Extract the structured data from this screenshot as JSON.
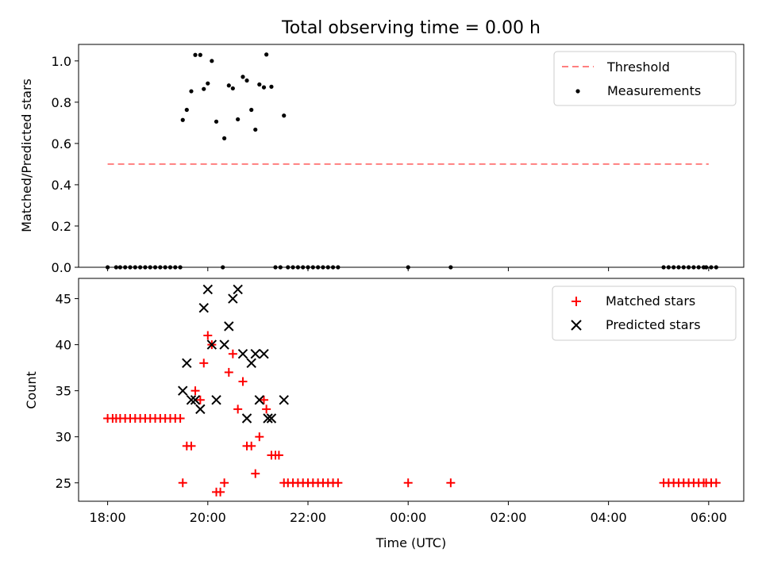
{
  "chart_data": [
    {
      "type": "scatter",
      "title": "Total observing time = 0.00 h",
      "xlabel": "",
      "ylabel": "Matched/Predicted stars",
      "ylim": [
        0.0,
        1.08
      ],
      "yticks": [
        0.0,
        0.2,
        0.4,
        0.6,
        0.8,
        1.0
      ],
      "yticklabels": [
        "0.0",
        "0.2",
        "0.4",
        "0.6",
        "0.8",
        "1.0"
      ],
      "x_unit": "hours since 18:00 UTC",
      "xlim": [
        -0.58,
        12.7
      ],
      "legend_position": "upper right",
      "series": [
        {
          "name": "Threshold",
          "kind": "dashed-line",
          "color": "#ff7f7f",
          "x": [
            0.0,
            12.0
          ],
          "y": [
            0.5,
            0.5
          ]
        },
        {
          "name": "Measurements",
          "kind": "dots",
          "color": "#000000",
          "points": [
            [
              0.0,
              0.0
            ],
            [
              0.17,
              0.0
            ],
            [
              0.25,
              0.0
            ],
            [
              0.35,
              0.0
            ],
            [
              0.45,
              0.0
            ],
            [
              0.55,
              0.0
            ],
            [
              0.65,
              0.0
            ],
            [
              0.75,
              0.0
            ],
            [
              0.85,
              0.0
            ],
            [
              0.95,
              0.0
            ],
            [
              1.05,
              0.0
            ],
            [
              1.15,
              0.0
            ],
            [
              1.25,
              0.0
            ],
            [
              1.35,
              0.0
            ],
            [
              1.45,
              0.0
            ],
            [
              1.5,
              0.714
            ],
            [
              1.58,
              0.763
            ],
            [
              1.67,
              0.853
            ],
            [
              1.75,
              1.029
            ],
            [
              1.85,
              1.029
            ],
            [
              1.92,
              0.864
            ],
            [
              2.0,
              0.891
            ],
            [
              2.08,
              1.0
            ],
            [
              2.17,
              0.706
            ],
            [
              2.33,
              0.625
            ],
            [
              2.42,
              0.881
            ],
            [
              2.5,
              0.867
            ],
            [
              2.6,
              0.717
            ],
            [
              2.7,
              0.923
            ],
            [
              2.78,
              0.905
            ],
            [
              2.87,
              0.763
            ],
            [
              2.95,
              0.667
            ],
            [
              3.03,
              0.886
            ],
            [
              3.12,
              0.872
            ],
            [
              3.17,
              1.031
            ],
            [
              3.27,
              0.875
            ],
            [
              3.52,
              0.735
            ],
            [
              2.3,
              0.0
            ],
            [
              3.35,
              0.0
            ],
            [
              3.45,
              0.0
            ],
            [
              3.6,
              0.0
            ],
            [
              3.7,
              0.0
            ],
            [
              3.8,
              0.0
            ],
            [
              3.9,
              0.0
            ],
            [
              4.0,
              0.0
            ],
            [
              4.1,
              0.0
            ],
            [
              4.2,
              0.0
            ],
            [
              4.3,
              0.0
            ],
            [
              4.4,
              0.0
            ],
            [
              4.5,
              0.0
            ],
            [
              4.6,
              0.0
            ],
            [
              6.0,
              0.0
            ],
            [
              6.85,
              0.0
            ],
            [
              11.1,
              0.0
            ],
            [
              11.2,
              0.0
            ],
            [
              11.3,
              0.0
            ],
            [
              11.4,
              0.0
            ],
            [
              11.5,
              0.0
            ],
            [
              11.6,
              0.0
            ],
            [
              11.7,
              0.0
            ],
            [
              11.8,
              0.0
            ],
            [
              11.9,
              0.0
            ],
            [
              11.95,
              0.0
            ],
            [
              12.05,
              0.0
            ],
            [
              12.15,
              0.0
            ]
          ]
        }
      ]
    },
    {
      "type": "scatter",
      "title": "",
      "xlabel": "Time (UTC)",
      "ylabel": "Count",
      "ylim": [
        23.0,
        47.2
      ],
      "yticks": [
        25,
        30,
        35,
        40,
        45
      ],
      "yticklabels": [
        "25",
        "30",
        "35",
        "40",
        "45"
      ],
      "x_unit": "hours since 18:00 UTC",
      "xlim": [
        -0.58,
        12.7
      ],
      "xticks": [
        0,
        2,
        4,
        6,
        8,
        10,
        12
      ],
      "xticklabels": [
        "18:00",
        "20:00",
        "22:00",
        "00:00",
        "02:00",
        "04:00",
        "06:00"
      ],
      "legend_position": "upper right",
      "series": [
        {
          "name": "Matched stars",
          "kind": "plus",
          "color": "#ff0000",
          "points": [
            [
              0.0,
              32
            ],
            [
              0.1,
              32
            ],
            [
              0.17,
              32
            ],
            [
              0.25,
              32
            ],
            [
              0.35,
              32
            ],
            [
              0.45,
              32
            ],
            [
              0.55,
              32
            ],
            [
              0.65,
              32
            ],
            [
              0.75,
              32
            ],
            [
              0.85,
              32
            ],
            [
              0.95,
              32
            ],
            [
              1.05,
              32
            ],
            [
              1.15,
              32
            ],
            [
              1.25,
              32
            ],
            [
              1.35,
              32
            ],
            [
              1.45,
              32
            ],
            [
              1.5,
              25
            ],
            [
              1.58,
              29
            ],
            [
              1.67,
              29
            ],
            [
              1.75,
              35
            ],
            [
              1.85,
              34
            ],
            [
              1.92,
              38
            ],
            [
              2.0,
              41
            ],
            [
              2.08,
              40
            ],
            [
              2.17,
              24
            ],
            [
              2.25,
              24
            ],
            [
              2.33,
              25
            ],
            [
              2.42,
              37
            ],
            [
              2.5,
              39
            ],
            [
              2.6,
              33
            ],
            [
              2.7,
              36
            ],
            [
              2.78,
              29
            ],
            [
              2.87,
              29
            ],
            [
              2.95,
              26
            ],
            [
              3.03,
              30
            ],
            [
              3.12,
              34
            ],
            [
              3.17,
              33
            ],
            [
              3.27,
              28
            ],
            [
              3.35,
              28
            ],
            [
              3.42,
              28
            ],
            [
              3.52,
              25
            ],
            [
              3.6,
              25
            ],
            [
              3.7,
              25
            ],
            [
              3.8,
              25
            ],
            [
              3.9,
              25
            ],
            [
              4.0,
              25
            ],
            [
              4.1,
              25
            ],
            [
              4.2,
              25
            ],
            [
              4.3,
              25
            ],
            [
              4.4,
              25
            ],
            [
              4.5,
              25
            ],
            [
              4.6,
              25
            ],
            [
              6.0,
              25
            ],
            [
              6.85,
              25
            ],
            [
              11.1,
              25
            ],
            [
              11.2,
              25
            ],
            [
              11.3,
              25
            ],
            [
              11.4,
              25
            ],
            [
              11.5,
              25
            ],
            [
              11.6,
              25
            ],
            [
              11.7,
              25
            ],
            [
              11.8,
              25
            ],
            [
              11.9,
              25
            ],
            [
              11.95,
              25
            ],
            [
              12.05,
              25
            ],
            [
              12.15,
              25
            ]
          ]
        },
        {
          "name": "Predicted stars",
          "kind": "cross",
          "color": "#000000",
          "points": [
            [
              1.5,
              35
            ],
            [
              1.58,
              38
            ],
            [
              1.67,
              34
            ],
            [
              1.75,
              34
            ],
            [
              1.85,
              33
            ],
            [
              1.92,
              44
            ],
            [
              2.0,
              46
            ],
            [
              2.08,
              40
            ],
            [
              2.17,
              34
            ],
            [
              2.33,
              40
            ],
            [
              2.42,
              42
            ],
            [
              2.5,
              45
            ],
            [
              2.6,
              46
            ],
            [
              2.7,
              39
            ],
            [
              2.78,
              32
            ],
            [
              2.87,
              38
            ],
            [
              2.95,
              39
            ],
            [
              3.03,
              34
            ],
            [
              3.12,
              39
            ],
            [
              3.2,
              32
            ],
            [
              3.27,
              32
            ],
            [
              3.52,
              34
            ]
          ]
        }
      ]
    }
  ]
}
